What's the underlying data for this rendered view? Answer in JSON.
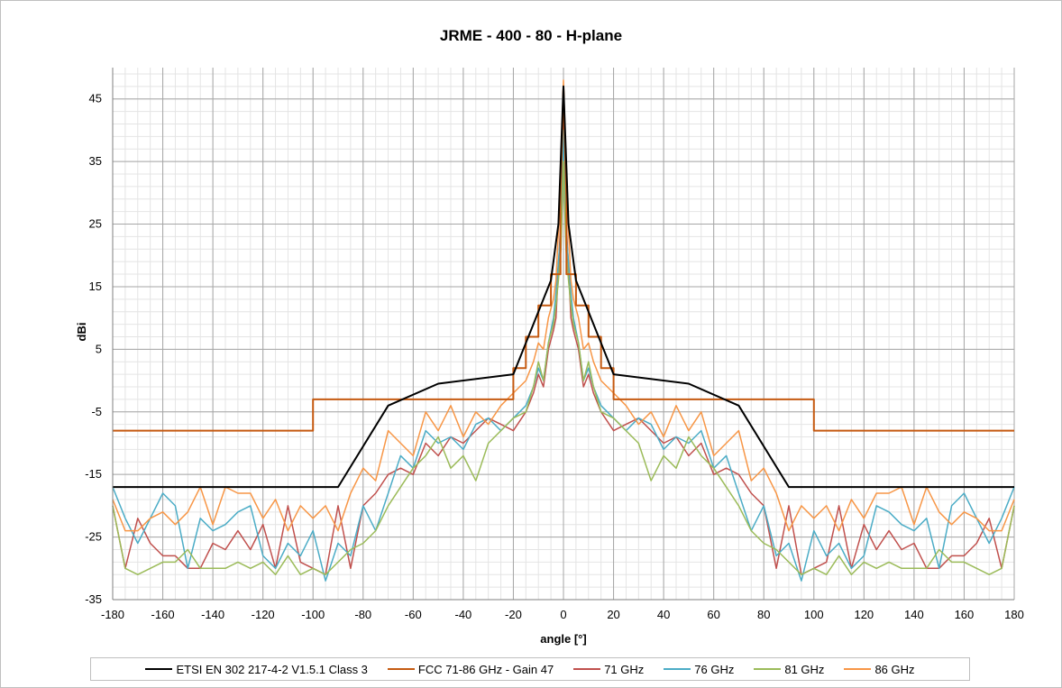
{
  "chart_data": {
    "type": "line",
    "title": "JRME - 400 - 80 - H-plane",
    "xlabel": "angle [°]",
    "ylabel": "dBi",
    "xlim": [
      -180,
      180
    ],
    "ylim": [
      -35,
      50
    ],
    "xticks": [
      -180,
      -160,
      -140,
      -120,
      -100,
      -80,
      -60,
      -40,
      -20,
      0,
      20,
      40,
      60,
      80,
      100,
      120,
      140,
      160,
      180
    ],
    "yticks": [
      -35,
      -25,
      -15,
      -5,
      5,
      15,
      25,
      35,
      45
    ],
    "grid": true,
    "legend_position": "bottom",
    "series": [
      {
        "name": "ETSI EN 302 217-4-2 V1.5.1 Class 3",
        "color": "#000000",
        "x": [
          -180,
          -90,
          -70,
          -50,
          -20,
          -5,
          -2,
          0,
          2,
          5,
          20,
          50,
          70,
          90,
          180
        ],
        "y": [
          -17,
          -17,
          -4,
          -0.5,
          1,
          16,
          25,
          47,
          25,
          16,
          1,
          -0.5,
          -4,
          -17,
          -17
        ]
      },
      {
        "name": "FCC 71-86 GHz - Gain 47",
        "color": "#c55a11",
        "x": [
          -180,
          -100,
          -100,
          -20,
          -20,
          -15,
          -15,
          -10,
          -10,
          -5,
          -5,
          -1.2,
          -1.2,
          0,
          1.2,
          1.2,
          5,
          5,
          10,
          10,
          15,
          15,
          20,
          20,
          100,
          100,
          180
        ],
        "y": [
          -8,
          -8,
          -3,
          -3,
          2,
          2,
          7,
          7,
          12,
          12,
          17,
          17,
          29,
          47,
          29,
          17,
          17,
          12,
          12,
          7,
          7,
          2,
          2,
          -3,
          -3,
          -8,
          -8
        ]
      },
      {
        "name": "71 GHz",
        "color": "#c0504d",
        "x": [
          -180,
          -175,
          -170,
          -165,
          -160,
          -155,
          -150,
          -145,
          -140,
          -135,
          -130,
          -125,
          -120,
          -115,
          -110,
          -105,
          -100,
          -95,
          -90,
          -85,
          -80,
          -75,
          -70,
          -65,
          -60,
          -55,
          -50,
          -45,
          -40,
          -35,
          -30,
          -25,
          -20,
          -15,
          -12,
          -10,
          -8,
          -6,
          -4,
          -3,
          -2,
          -1,
          0,
          1,
          2,
          3,
          4,
          6,
          8,
          10,
          12,
          15,
          20,
          25,
          30,
          35,
          40,
          45,
          50,
          55,
          60,
          65,
          70,
          75,
          80,
          85,
          90,
          95,
          100,
          105,
          110,
          115,
          120,
          125,
          130,
          135,
          140,
          145,
          150,
          155,
          160,
          165,
          170,
          175,
          180
        ],
        "y": [
          -20,
          -30,
          -22,
          -26,
          -28,
          -28,
          -30,
          -30,
          -26,
          -27,
          -24,
          -27,
          -23,
          -30,
          -20,
          -29,
          -30,
          -31,
          -20,
          -30,
          -20,
          -18,
          -15,
          -14,
          -15,
          -10,
          -12,
          -9,
          -10,
          -8,
          -6,
          -7,
          -8,
          -5,
          -2,
          1,
          -1,
          5,
          8,
          10,
          18,
          26,
          44,
          26,
          18,
          10,
          8,
          5,
          -1,
          1,
          -2,
          -5,
          -8,
          -7,
          -6,
          -8,
          -10,
          -9,
          -12,
          -10,
          -15,
          -14,
          -15,
          -18,
          -20,
          -30,
          -20,
          -31,
          -30,
          -29,
          -20,
          -30,
          -23,
          -27,
          -24,
          -27,
          -26,
          -30,
          -30,
          -28,
          -28,
          -26,
          -22,
          -30,
          -20
        ]
      },
      {
        "name": "76 GHz",
        "color": "#4bacc6",
        "x": [
          -180,
          -175,
          -170,
          -165,
          -160,
          -155,
          -150,
          -145,
          -140,
          -135,
          -130,
          -125,
          -120,
          -115,
          -110,
          -105,
          -100,
          -95,
          -90,
          -85,
          -80,
          -75,
          -70,
          -65,
          -60,
          -55,
          -50,
          -45,
          -40,
          -35,
          -30,
          -25,
          -20,
          -15,
          -12,
          -10,
          -8,
          -6,
          -4,
          -3,
          -2,
          -1,
          0,
          1,
          2,
          3,
          4,
          6,
          8,
          10,
          12,
          15,
          20,
          25,
          30,
          35,
          40,
          45,
          50,
          55,
          60,
          65,
          70,
          75,
          80,
          85,
          90,
          95,
          100,
          105,
          110,
          115,
          120,
          125,
          130,
          135,
          140,
          145,
          150,
          155,
          160,
          165,
          170,
          175,
          180
        ],
        "y": [
          -17,
          -22,
          -26,
          -22,
          -18,
          -20,
          -30,
          -22,
          -24,
          -23,
          -21,
          -20,
          -28,
          -30,
          -26,
          -28,
          -24,
          -32,
          -26,
          -28,
          -20,
          -24,
          -18,
          -12,
          -14,
          -8,
          -10,
          -9,
          -11,
          -7,
          -6,
          -8,
          -6,
          -4,
          -1,
          2,
          0,
          6,
          10,
          14,
          19,
          24,
          40,
          24,
          19,
          14,
          10,
          6,
          0,
          2,
          -1,
          -4,
          -6,
          -8,
          -6,
          -7,
          -11,
          -9,
          -10,
          -8,
          -14,
          -12,
          -18,
          -24,
          -20,
          -28,
          -26,
          -32,
          -24,
          -28,
          -26,
          -30,
          -28,
          -20,
          -21,
          -23,
          -24,
          -22,
          -30,
          -20,
          -18,
          -22,
          -26,
          -22,
          -17
        ]
      },
      {
        "name": "81 GHz",
        "color": "#9bbb59",
        "x": [
          -180,
          -175,
          -170,
          -165,
          -160,
          -155,
          -150,
          -145,
          -140,
          -135,
          -130,
          -125,
          -120,
          -115,
          -110,
          -105,
          -100,
          -95,
          -90,
          -85,
          -80,
          -75,
          -70,
          -65,
          -60,
          -55,
          -50,
          -45,
          -40,
          -35,
          -30,
          -25,
          -20,
          -15,
          -12,
          -10,
          -8,
          -6,
          -4,
          -3,
          -2,
          -1,
          0,
          1,
          2,
          3,
          4,
          6,
          8,
          10,
          12,
          15,
          20,
          25,
          30,
          35,
          40,
          45,
          50,
          55,
          60,
          65,
          70,
          75,
          80,
          85,
          90,
          95,
          100,
          105,
          110,
          115,
          120,
          125,
          130,
          135,
          140,
          145,
          150,
          155,
          160,
          165,
          170,
          175,
          180
        ],
        "y": [
          -20,
          -30,
          -31,
          -30,
          -29,
          -29,
          -27,
          -30,
          -30,
          -30,
          -29,
          -30,
          -29,
          -31,
          -28,
          -31,
          -30,
          -31,
          -29,
          -27,
          -26,
          -24,
          -20,
          -17,
          -14,
          -12,
          -9,
          -14,
          -12,
          -16,
          -10,
          -8,
          -6,
          -5,
          -1,
          3,
          0,
          6,
          9,
          12,
          16,
          21,
          35,
          21,
          16,
          12,
          9,
          6,
          0,
          3,
          -1,
          -5,
          -6,
          -8,
          -10,
          -16,
          -12,
          -14,
          -9,
          -12,
          -14,
          -17,
          -20,
          -24,
          -26,
          -27,
          -29,
          -31,
          -30,
          -31,
          -28,
          -31,
          -29,
          -30,
          -29,
          -30,
          -30,
          -30,
          -27,
          -29,
          -29,
          -30,
          -31,
          -30,
          -20
        ]
      },
      {
        "name": "86 GHz",
        "color": "#f79646",
        "x": [
          -180,
          -175,
          -170,
          -165,
          -160,
          -155,
          -150,
          -145,
          -140,
          -135,
          -130,
          -125,
          -120,
          -115,
          -110,
          -105,
          -100,
          -95,
          -90,
          -85,
          -80,
          -75,
          -70,
          -65,
          -60,
          -55,
          -50,
          -45,
          -40,
          -35,
          -30,
          -25,
          -20,
          -15,
          -12,
          -10,
          -8,
          -6,
          -4,
          -3,
          -2,
          -1,
          0,
          1,
          2,
          3,
          4,
          6,
          8,
          10,
          12,
          15,
          20,
          25,
          30,
          35,
          40,
          45,
          50,
          55,
          60,
          65,
          70,
          75,
          80,
          85,
          90,
          95,
          100,
          105,
          110,
          115,
          120,
          125,
          130,
          135,
          140,
          145,
          150,
          155,
          160,
          165,
          170,
          175,
          180
        ],
        "y": [
          -19,
          -24,
          -24,
          -22,
          -21,
          -23,
          -21,
          -17,
          -23,
          -17,
          -18,
          -18,
          -22,
          -19,
          -24,
          -20,
          -22,
          -20,
          -24,
          -18,
          -14,
          -16,
          -8,
          -10,
          -12,
          -5,
          -8,
          -4,
          -9,
          -5,
          -7,
          -4,
          -2,
          0,
          3,
          6,
          5,
          10,
          13,
          16,
          24,
          32,
          48,
          32,
          24,
          16,
          13,
          10,
          5,
          6,
          3,
          0,
          -2,
          -4,
          -7,
          -5,
          -9,
          -4,
          -8,
          -5,
          -12,
          -10,
          -8,
          -16,
          -14,
          -18,
          -24,
          -20,
          -22,
          -20,
          -24,
          -19,
          -22,
          -18,
          -18,
          -17,
          -23,
          -17,
          -21,
          -23,
          -21,
          -22,
          -24,
          -24,
          -19
        ]
      }
    ]
  }
}
